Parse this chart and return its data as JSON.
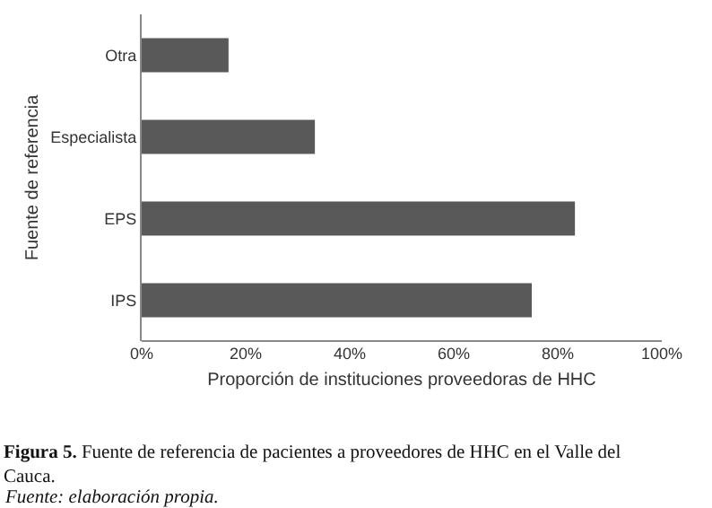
{
  "chart_data": {
    "type": "bar",
    "orientation": "horizontal",
    "categories": [
      "Otra",
      "Especialista",
      "EPS",
      "IPS"
    ],
    "values": [
      16.7,
      33.3,
      83.3,
      75
    ],
    "color": "#595959",
    "xlim": [
      0,
      100
    ],
    "xticks": [
      {
        "value": 0,
        "label": "0%"
      },
      {
        "value": 20,
        "label": "20%"
      },
      {
        "value": 40,
        "label": "40%"
      },
      {
        "value": 60,
        "label": "60%"
      },
      {
        "value": 80,
        "label": "80%"
      },
      {
        "value": 100,
        "label": "100%"
      }
    ],
    "xlabel": "Proporción de instituciones proveedoras de HHC",
    "ylabel": "Fuente de referencia",
    "grid": false,
    "legend": false,
    "annotations": [
      "Figura 5. Fuente de referencia de pacientes a proveedores de HHC en el Valle del Cauca.",
      "Fuente: elaboración propia."
    ]
  }
}
